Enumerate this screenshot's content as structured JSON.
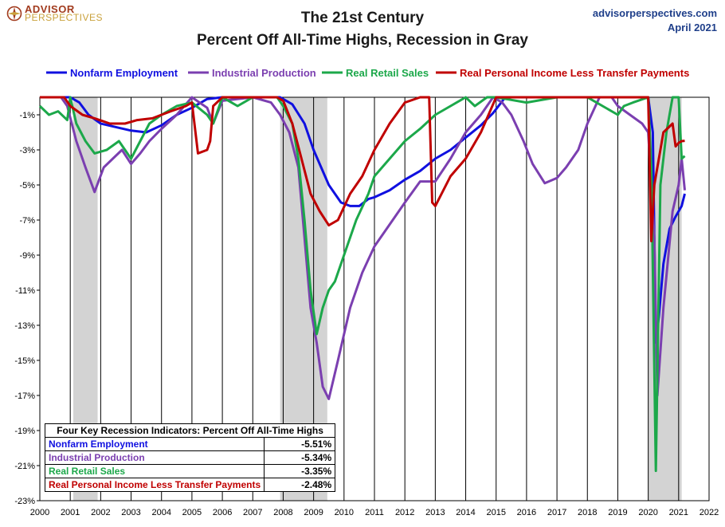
{
  "brand": {
    "name_top": "ADVISOR",
    "name_bottom": "PERSPECTIVES",
    "icon": "compass-logo-icon"
  },
  "title_line1": "The 21st Century",
  "title_line2": "Percent Off All-Time Highs, Recession in Gray",
  "source_site": "advisorperspectives.com",
  "source_date": "April 2021",
  "colors": {
    "employment": "#1010e0",
    "industrial": "#7b3fb0",
    "retail": "#1ca84a",
    "income": "#c00000",
    "recession": "#d3d3d3"
  },
  "table": {
    "header": "Four Key Recession Indicators: Percent Off All-Time Highs",
    "rows": [
      {
        "label": "Nonfarm Employment",
        "value": "-5.51%",
        "color": "#1010e0"
      },
      {
        "label": "Industrial Production",
        "value": "-5.34%",
        "color": "#7b3fb0"
      },
      {
        "label": "Real Retail Sales",
        "value": "-3.35%",
        "color": "#1ca84a"
      },
      {
        "label": "Real Personal Income Less Transfer Payments",
        "value": "-2.48%",
        "color": "#c00000"
      }
    ]
  },
  "chart_data": {
    "type": "line",
    "title": "The 21st Century Percent Off All-Time Highs, Recession in Gray",
    "xlabel": "",
    "ylabel": "",
    "xlim": [
      2000,
      2022
    ],
    "ylim": [
      -23,
      1
    ],
    "x_ticks": [
      "2000",
      "2001",
      "2002",
      "2003",
      "2004",
      "2005",
      "2006",
      "2007",
      "2008",
      "2009",
      "2010",
      "2011",
      "2012",
      "2013",
      "2014",
      "2015",
      "2016",
      "2017",
      "2018",
      "2019",
      "2020",
      "2021",
      "2022"
    ],
    "y_ticks": [
      -1,
      -3,
      -5,
      -7,
      -9,
      -11,
      -13,
      -15,
      -17,
      -19,
      -21,
      -23
    ],
    "y_tick_labels": [
      "-1%",
      "-3%",
      "-5%",
      "-7%",
      "-9%",
      "-11%",
      "-13%",
      "-15%",
      "-17%",
      "-19%",
      "-21%",
      "-23%"
    ],
    "grid": "vertical",
    "legend_position": "top",
    "recessions": [
      [
        2001.1,
        2001.9
      ],
      [
        2007.9,
        2009.45
      ],
      [
        2020.0,
        2021.1
      ]
    ],
    "series": [
      {
        "name": "Nonfarm Employment",
        "color": "#1010e0",
        "x": [
          2000,
          2001.0,
          2001.3,
          2001.6,
          2002.0,
          2002.5,
          2003.0,
          2003.5,
          2004.0,
          2004.5,
          2005.0,
          2005.5,
          2006.0,
          2007.0,
          2007.5,
          2007.9,
          2008.3,
          2008.7,
          2009.0,
          2009.5,
          2009.9,
          2010.2,
          2010.5,
          2010.8,
          2011.0,
          2011.5,
          2012.0,
          2012.5,
          2013.0,
          2013.5,
          2014.0,
          2014.5,
          2014.9,
          2015.3,
          2016,
          2017,
          2018,
          2019,
          2020.0,
          2020.15,
          2020.25,
          2020.35,
          2020.5,
          2020.7,
          2020.9,
          2021.0,
          2021.1,
          2021.2
        ],
        "y": [
          0,
          0,
          -0.3,
          -1.0,
          -1.5,
          -1.7,
          -1.9,
          -2.0,
          -1.6,
          -1.0,
          -0.6,
          -0.1,
          0,
          0,
          0,
          0,
          -0.4,
          -1.5,
          -3.0,
          -5.0,
          -6.0,
          -6.2,
          -6.2,
          -5.8,
          -5.7,
          -5.3,
          -4.7,
          -4.2,
          -3.5,
          -3.0,
          -2.3,
          -1.6,
          -0.9,
          0,
          0,
          0,
          0,
          0,
          0,
          -2.0,
          -14.0,
          -12.5,
          -9.5,
          -7.5,
          -6.8,
          -6.5,
          -6.2,
          -5.5
        ]
      },
      {
        "name": "Industrial Production",
        "color": "#7b3fb0",
        "x": [
          2000,
          2000.7,
          2000.9,
          2001.2,
          2001.5,
          2001.8,
          2002.1,
          2002.4,
          2002.7,
          2003.0,
          2003.3,
          2003.6,
          2004.0,
          2004.5,
          2005.0,
          2005.5,
          2005.7,
          2006.0,
          2007.0,
          2007.6,
          2007.9,
          2008.2,
          2008.5,
          2008.7,
          2008.9,
          2009.1,
          2009.3,
          2009.5,
          2009.8,
          2010.2,
          2010.6,
          2011.0,
          2011.4,
          2012.0,
          2012.5,
          2013.0,
          2013.5,
          2014.0,
          2014.5,
          2014.9,
          2015.2,
          2015.5,
          2015.9,
          2016.2,
          2016.6,
          2017.0,
          2017.3,
          2017.7,
          2018.0,
          2018.4,
          2018.8,
          2019.0,
          2019.4,
          2019.8,
          2020.0,
          2020.2,
          2020.3,
          2020.5,
          2020.8,
          2021.0,
          2021.1,
          2021.2
        ],
        "y": [
          0,
          0,
          -0.5,
          -2.5,
          -4.0,
          -5.4,
          -4.0,
          -3.5,
          -3.0,
          -3.8,
          -3.2,
          -2.5,
          -1.8,
          -1.0,
          0,
          -0.6,
          -1.5,
          -0.2,
          0,
          -0.3,
          -1.0,
          -2.0,
          -4.0,
          -8.0,
          -12.0,
          -14.0,
          -16.5,
          -17.2,
          -15.0,
          -12.0,
          -10.0,
          -8.5,
          -7.5,
          -6.0,
          -4.8,
          -4.8,
          -3.5,
          -2.0,
          -1.0,
          0,
          -0.3,
          -1.0,
          -2.5,
          -3.8,
          -4.9,
          -4.6,
          -4.0,
          -3.0,
          -1.5,
          0,
          0,
          -0.5,
          -1.0,
          -1.5,
          -2.0,
          -8.0,
          -17.0,
          -12.0,
          -6.5,
          -5.0,
          -3.5,
          -5.3
        ]
      },
      {
        "name": "Real Retail Sales",
        "color": "#1ca84a",
        "x": [
          2000,
          2000.3,
          2000.6,
          2000.9,
          2001.0,
          2001.2,
          2001.5,
          2001.8,
          2002.2,
          2002.6,
          2003.0,
          2003.3,
          2003.6,
          2004.0,
          2004.5,
          2005.0,
          2005.5,
          2005.7,
          2006.0,
          2006.5,
          2007.0,
          2007.8,
          2008.0,
          2008.3,
          2008.5,
          2008.7,
          2008.9,
          2009.1,
          2009.3,
          2009.5,
          2009.7,
          2010.0,
          2010.4,
          2010.8,
          2011.0,
          2011.5,
          2012.0,
          2012.5,
          2013.0,
          2013.5,
          2014.0,
          2014.3,
          2014.7,
          2015.0,
          2016,
          2017,
          2018,
          2019.0,
          2019.2,
          2019.5,
          2020.0,
          2020.1,
          2020.25,
          2020.4,
          2020.6,
          2020.8,
          2021.0,
          2021.1,
          2021.2
        ],
        "y": [
          -0.5,
          -1.0,
          -0.8,
          -1.3,
          0,
          -1.5,
          -2.5,
          -3.2,
          -3.0,
          -2.5,
          -3.5,
          -2.5,
          -1.5,
          -1.0,
          -0.5,
          -0.3,
          -1.0,
          -1.5,
          0,
          -0.5,
          0,
          0,
          -0.5,
          -1.5,
          -3.5,
          -7.0,
          -11.0,
          -13.5,
          -12.0,
          -11.0,
          -10.5,
          -9.0,
          -7.0,
          -5.5,
          -4.5,
          -3.5,
          -2.5,
          -1.8,
          -1.0,
          -0.5,
          0,
          -0.5,
          0,
          0,
          -0.3,
          0,
          0,
          -1.0,
          -0.5,
          -0.3,
          0,
          -4.0,
          -21.3,
          -5.0,
          -2.0,
          0,
          0,
          -3.5,
          -3.35
        ]
      },
      {
        "name": "Real Personal Income Less Transfer Payments",
        "color": "#c00000",
        "x": [
          2000,
          2000.8,
          2001.0,
          2001.4,
          2001.8,
          2002.3,
          2002.8,
          2003.2,
          2003.7,
          2004.0,
          2004.3,
          2004.8,
          2005.0,
          2005.2,
          2005.5,
          2005.6,
          2005.7,
          2006.0,
          2007.0,
          2007.8,
          2008.0,
          2008.3,
          2008.6,
          2008.9,
          2009.2,
          2009.5,
          2009.8,
          2010.2,
          2010.6,
          2011.0,
          2011.5,
          2012.0,
          2012.5,
          2012.8,
          2012.9,
          2013.0,
          2013.5,
          2014.0,
          2014.5,
          2015.0,
          2016,
          2017,
          2018,
          2019,
          2020.0,
          2020.1,
          2020.2,
          2020.5,
          2020.8,
          2020.9,
          2021.0,
          2021.1,
          2021.2
        ],
        "y": [
          0,
          0,
          -0.5,
          -1.0,
          -1.2,
          -1.5,
          -1.5,
          -1.3,
          -1.2,
          -1.0,
          -0.8,
          -0.5,
          -0.3,
          -3.2,
          -3.0,
          -2.5,
          -0.5,
          0,
          0,
          0,
          -0.2,
          -1.5,
          -3.5,
          -5.5,
          -6.5,
          -7.3,
          -7.0,
          -5.5,
          -4.5,
          -3.0,
          -1.5,
          -0.3,
          0,
          0,
          -6.0,
          -6.2,
          -4.5,
          -3.5,
          -2.0,
          0,
          0,
          0,
          0,
          0,
          0,
          -8.2,
          -5.0,
          -2.0,
          -1.5,
          -2.8,
          -2.6,
          -2.5,
          -2.48
        ]
      }
    ]
  }
}
